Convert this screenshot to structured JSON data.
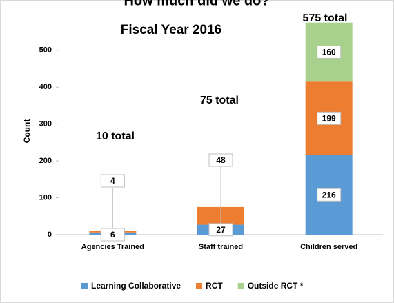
{
  "chart_data": {
    "type": "bar",
    "stacked": true,
    "heading": "How much did we do?",
    "title": "Fiscal Year 2016",
    "y_label": "Count",
    "categories": [
      "Agencies Trained",
      "Staff trained",
      "Children served"
    ],
    "series": [
      {
        "name": "Learning Collaborative",
        "color": "#5b9bd5",
        "values": [
          6,
          27,
          216
        ]
      },
      {
        "name": "RCT",
        "color": "#ed7d31",
        "values": [
          4,
          48,
          199
        ]
      },
      {
        "name": "Outside RCT *",
        "color": "#a9d18e",
        "values": [
          null,
          null,
          160
        ]
      }
    ],
    "annotations": [
      "10 total",
      "75 total",
      "575 total"
    ],
    "ylim": [
      0,
      580
    ],
    "yticks": [
      0,
      100,
      200,
      300,
      400,
      500
    ],
    "legend": "bottom"
  }
}
